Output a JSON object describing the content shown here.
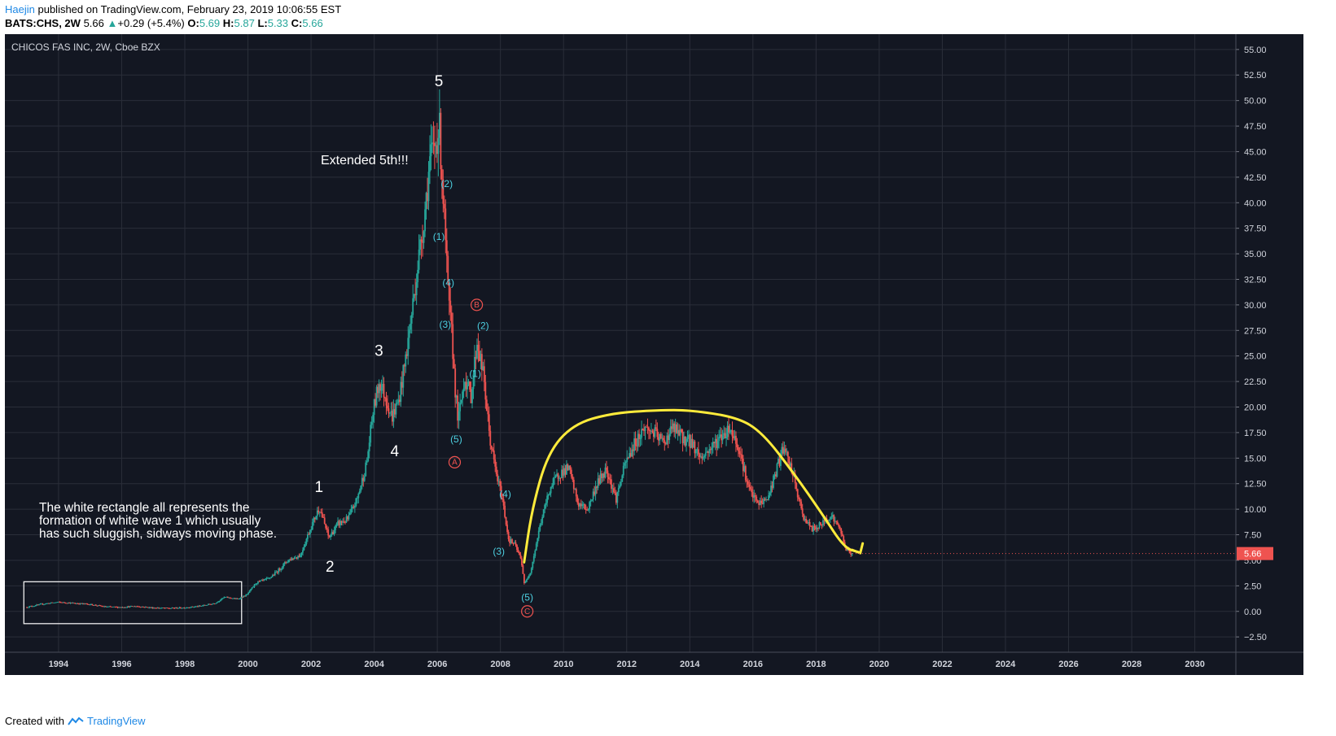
{
  "header": {
    "user": "Haejin",
    "published": "published on TradingView.com, February 23, 2019 10:06:55 EST",
    "symbol": "BATS:CHS, 2W",
    "last": "5.66",
    "change": "+0.29 (+5.4%)",
    "o_label": "O:",
    "o_value": "5.69",
    "h_label": "H:",
    "h_value": "5.87",
    "l_label": "L:",
    "l_value": "5.33",
    "c_label": "C:",
    "c_value": "5.66"
  },
  "footer": {
    "created_with": "Created with",
    "brand": "TradingView"
  },
  "chart_data": {
    "type": "candlestick",
    "title": "CHICOS FAS INC, 2W, Cboe BZX",
    "x_ticks": [
      "1994",
      "1996",
      "1998",
      "2000",
      "2002",
      "2004",
      "2006",
      "2008",
      "2010",
      "2012",
      "2014",
      "2016",
      "2018",
      "2020",
      "2022",
      "2024",
      "2026",
      "2028",
      "2030"
    ],
    "y_ticks": [
      "55.00",
      "52.50",
      "50.00",
      "47.50",
      "45.00",
      "42.50",
      "40.00",
      "37.50",
      "35.00",
      "32.50",
      "30.00",
      "27.50",
      "25.00",
      "22.50",
      "20.00",
      "17.50",
      "15.00",
      "12.50",
      "10.00",
      "7.50",
      "5.00",
      "2.50",
      "0.00",
      "−2.50"
    ],
    "xlim": [
      1992.3,
      2031.3
    ],
    "ylim": [
      -4.0,
      56.5
    ],
    "last_price_label": "5.66",
    "grid": true,
    "colors": {
      "background": "#131722",
      "grid": "#2a2e39",
      "up": "#26a69a",
      "down": "#ef5350",
      "annotation_white": "#ffffff",
      "annotation_cyan": "#4dd0e1",
      "annotation_red": "#ef5350",
      "curve": "#ffeb3b"
    },
    "price_path": [
      [
        1993.0,
        0.4
      ],
      [
        1993.5,
        0.7
      ],
      [
        1994.0,
        0.9
      ],
      [
        1994.5,
        0.8
      ],
      [
        1995.0,
        0.7
      ],
      [
        1995.5,
        0.45
      ],
      [
        1996.0,
        0.4
      ],
      [
        1996.5,
        0.5
      ],
      [
        1997.0,
        0.35
      ],
      [
        1997.5,
        0.3
      ],
      [
        1998.0,
        0.35
      ],
      [
        1998.5,
        0.5
      ],
      [
        1999.0,
        0.8
      ],
      [
        1999.3,
        1.4
      ],
      [
        1999.7,
        1.2
      ],
      [
        2000.0,
        1.6
      ],
      [
        2000.3,
        2.8
      ],
      [
        2000.7,
        3.2
      ],
      [
        2001.0,
        4.0
      ],
      [
        2001.3,
        5.0
      ],
      [
        2001.7,
        5.5
      ],
      [
        2002.0,
        8.0
      ],
      [
        2002.3,
        10.2
      ],
      [
        2002.6,
        7.2
      ],
      [
        2002.9,
        8.6
      ],
      [
        2003.2,
        9.0
      ],
      [
        2003.5,
        11.0
      ],
      [
        2003.8,
        14.5
      ],
      [
        2004.0,
        19.5
      ],
      [
        2004.2,
        22.5
      ],
      [
        2004.4,
        21.0
      ],
      [
        2004.6,
        19.0
      ],
      [
        2004.8,
        20.5
      ],
      [
        2005.0,
        24.0
      ],
      [
        2005.2,
        28.5
      ],
      [
        2005.4,
        33.5
      ],
      [
        2005.6,
        38.0
      ],
      [
        2005.8,
        44.0
      ],
      [
        2006.0,
        46.0
      ],
      [
        2006.1,
        47.5
      ],
      [
        2006.2,
        42.0
      ],
      [
        2006.3,
        36.0
      ],
      [
        2006.4,
        30.0
      ],
      [
        2006.5,
        27.0
      ],
      [
        2006.6,
        22.0
      ],
      [
        2006.7,
        18.5
      ],
      [
        2006.9,
        23.0
      ],
      [
        2007.1,
        21.0
      ],
      [
        2007.3,
        26.5
      ],
      [
        2007.5,
        23.0
      ],
      [
        2007.7,
        17.0
      ],
      [
        2007.9,
        13.5
      ],
      [
        2008.1,
        11.0
      ],
      [
        2008.3,
        7.0
      ],
      [
        2008.5,
        6.5
      ],
      [
        2008.7,
        5.0
      ],
      [
        2008.8,
        2.6
      ],
      [
        2009.0,
        4.0
      ],
      [
        2009.3,
        8.5
      ],
      [
        2009.6,
        12.0
      ],
      [
        2009.9,
        13.5
      ],
      [
        2010.2,
        14.0
      ],
      [
        2010.5,
        10.5
      ],
      [
        2010.8,
        10.0
      ],
      [
        2011.1,
        12.5
      ],
      [
        2011.4,
        14.0
      ],
      [
        2011.7,
        11.0
      ],
      [
        2012.0,
        14.5
      ],
      [
        2012.3,
        16.5
      ],
      [
        2012.6,
        18.0
      ],
      [
        2012.9,
        17.5
      ],
      [
        2013.2,
        16.5
      ],
      [
        2013.5,
        18.0
      ],
      [
        2013.8,
        17.0
      ],
      [
        2014.1,
        16.5
      ],
      [
        2014.4,
        15.0
      ],
      [
        2014.7,
        16.0
      ],
      [
        2015.0,
        17.0
      ],
      [
        2015.3,
        18.0
      ],
      [
        2015.6,
        16.0
      ],
      [
        2015.9,
        12.0
      ],
      [
        2016.2,
        10.5
      ],
      [
        2016.5,
        11.0
      ],
      [
        2016.8,
        14.0
      ],
      [
        2017.0,
        16.0
      ],
      [
        2017.3,
        13.5
      ],
      [
        2017.6,
        9.5
      ],
      [
        2017.9,
        8.0
      ],
      [
        2018.2,
        8.5
      ],
      [
        2018.5,
        9.5
      ],
      [
        2018.8,
        8.0
      ],
      [
        2019.0,
        6.0
      ],
      [
        2019.15,
        5.66
      ]
    ],
    "annotations": [
      {
        "text": "5",
        "x": 2006.05,
        "y": 51.8,
        "color": "white",
        "size": 19
      },
      {
        "text": "3",
        "x": 2004.15,
        "y": 25.4,
        "color": "white",
        "size": 19
      },
      {
        "text": "4",
        "x": 2004.65,
        "y": 15.6,
        "color": "white",
        "size": 19
      },
      {
        "text": "1",
        "x": 2002.25,
        "y": 12.1,
        "color": "white",
        "size": 19
      },
      {
        "text": "2",
        "x": 2002.6,
        "y": 4.3,
        "color": "white",
        "size": 19
      },
      {
        "text": "(2)",
        "x": 2006.3,
        "y": 41.8,
        "color": "cyan",
        "size": 12
      },
      {
        "text": "(1)",
        "x": 2006.05,
        "y": 36.6,
        "color": "cyan",
        "size": 12
      },
      {
        "text": "(4)",
        "x": 2006.35,
        "y": 32.1,
        "color": "cyan",
        "size": 12
      },
      {
        "text": "(3)",
        "x": 2006.25,
        "y": 28.0,
        "color": "cyan",
        "size": 12
      },
      {
        "text": "(2)",
        "x": 2007.45,
        "y": 27.9,
        "color": "cyan",
        "size": 12
      },
      {
        "text": "(1)",
        "x": 2007.2,
        "y": 23.2,
        "color": "cyan",
        "size": 12
      },
      {
        "text": "(5)",
        "x": 2006.6,
        "y": 16.8,
        "color": "cyan",
        "size": 12
      },
      {
        "text": "(4)",
        "x": 2008.15,
        "y": 11.4,
        "color": "cyan",
        "size": 12
      },
      {
        "text": "(3)",
        "x": 2007.95,
        "y": 5.8,
        "color": "cyan",
        "size": 12
      },
      {
        "text": "(5)",
        "x": 2008.85,
        "y": 1.3,
        "color": "cyan",
        "size": 12
      }
    ],
    "circled_labels": [
      {
        "text": "B",
        "x": 2007.25,
        "y": 30.0
      },
      {
        "text": "A",
        "x": 2006.55,
        "y": 14.6
      },
      {
        "text": "C",
        "x": 2008.85,
        "y": 0.0
      }
    ],
    "texts": {
      "extended": "Extended 5th!!!",
      "note_line1": "The white rectangle all represents the",
      "note_line2": "formation of white wave 1 which usually",
      "note_line3": "has such sluggish, sidways moving phase."
    },
    "rectangle": {
      "x1": 1992.9,
      "x2": 1999.8,
      "y1": -1.2,
      "y2": 2.9
    },
    "curve_points": [
      [
        2008.75,
        4.8
      ],
      [
        2009.0,
        10.0
      ],
      [
        2009.5,
        15.5
      ],
      [
        2010.3,
        18.3
      ],
      [
        2011.5,
        19.4
      ],
      [
        2013.0,
        19.7
      ],
      [
        2014.0,
        19.7
      ],
      [
        2015.5,
        19.0
      ],
      [
        2016.3,
        17.5
      ],
      [
        2017.3,
        13.5
      ],
      [
        2018.2,
        9.5
      ],
      [
        2018.9,
        6.2
      ],
      [
        2019.35,
        5.8
      ]
    ],
    "arrow_tip": [
      2019.4,
      5.7
    ]
  }
}
